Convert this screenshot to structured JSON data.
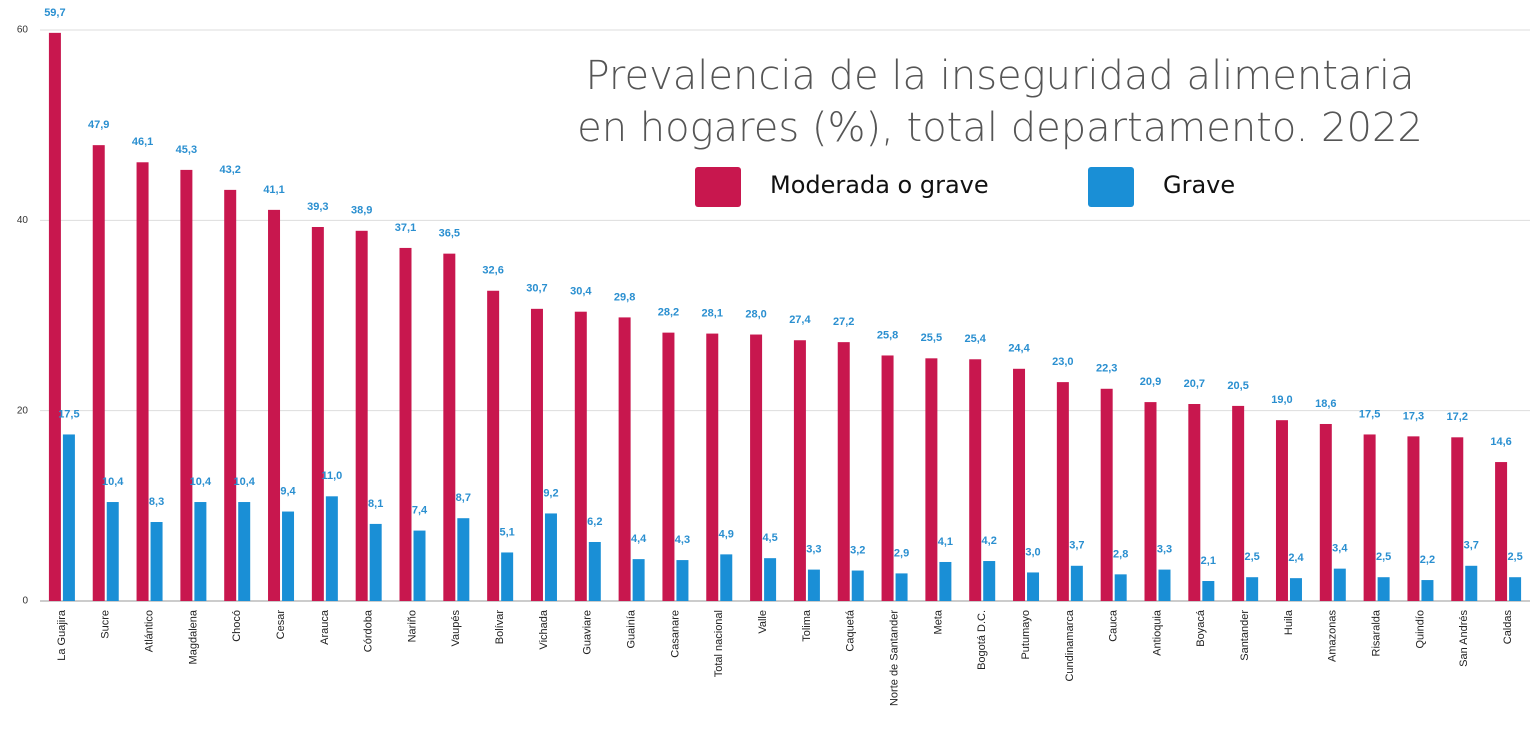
{
  "chart_data": {
    "type": "bar",
    "title": [
      "Prevalencia de la inseguridad alimentaria",
      "en hogares (%), total departamento. 2022"
    ],
    "categories": [
      "La Guajira",
      "Sucre",
      "Atlántico",
      "Magdalena",
      "Chocó",
      "Cesar",
      "Arauca",
      "Córdoba",
      "Nariño",
      "Vaupés",
      "Bolívar",
      "Vichada",
      "Guaviare",
      "Guainía",
      "Casanare",
      "Total nacional",
      "Valle",
      "Tolima",
      "Caquetá",
      "Norte de Santander",
      "Meta",
      "Bogotá D.C.",
      "Putumayo",
      "Cundinamarca",
      "Cauca",
      "Antioquia",
      "Boyacá",
      "Santander",
      "Huila",
      "Amazonas",
      "Risaralda",
      "Quindío",
      "San Andrés",
      "Caldas"
    ],
    "series": [
      {
        "name": "Moderada o grave",
        "color": "#c8174e",
        "values": [
          59.7,
          47.9,
          46.1,
          45.3,
          43.2,
          41.1,
          39.3,
          38.9,
          37.1,
          36.5,
          32.6,
          30.7,
          30.4,
          29.8,
          28.2,
          28.1,
          28.0,
          27.4,
          27.2,
          25.8,
          25.5,
          25.4,
          24.4,
          23.0,
          22.3,
          20.9,
          20.7,
          20.5,
          19.0,
          18.6,
          17.5,
          17.3,
          17.2,
          14.6
        ],
        "value_labels": [
          "59,7",
          "47,9",
          "46,1",
          "45,3",
          "43,2",
          "41,1",
          "39,3",
          "38,9",
          "37,1",
          "36,5",
          "32,6",
          "30,7",
          "30,4",
          "29,8",
          "28,2",
          "28,1",
          "28,0",
          "27,4",
          "27,2",
          "25,8",
          "25,5",
          "25,4",
          "24,4",
          "23,0",
          "22,3",
          "20,9",
          "20,7",
          "20,5",
          "19,0",
          "18,6",
          "17,5",
          "17,3",
          "17,2",
          "14,6"
        ]
      },
      {
        "name": "Grave",
        "color": "#1a8fd6",
        "values": [
          17.5,
          10.4,
          8.3,
          10.4,
          10.4,
          9.4,
          11.0,
          8.1,
          7.4,
          8.7,
          5.1,
          9.2,
          6.2,
          4.4,
          4.3,
          4.9,
          4.5,
          3.3,
          3.2,
          2.9,
          4.1,
          4.2,
          3.0,
          3.7,
          2.8,
          3.3,
          2.1,
          2.5,
          2.4,
          3.4,
          2.5,
          2.2,
          3.7,
          2.5
        ],
        "value_labels": [
          "17,5",
          "10,4",
          "8,3",
          "10,4",
          "10,4",
          "9,4",
          "11,0",
          "8,1",
          "7,4",
          "8,7",
          "5,1",
          "9,2",
          "6,2",
          "4,4",
          "4,3",
          "4,9",
          "4,5",
          "3,3",
          "3,2",
          "2,9",
          "4,1",
          "4,2",
          "3,0",
          "3,7",
          "2,8",
          "3,3",
          "2,1",
          "2,5",
          "2,4",
          "3,4",
          "2,5",
          "2,2",
          "3,7",
          "2,5"
        ]
      }
    ],
    "ylim": [
      0,
      60
    ],
    "yticks": [
      0,
      20,
      40,
      60
    ],
    "grid": true
  }
}
